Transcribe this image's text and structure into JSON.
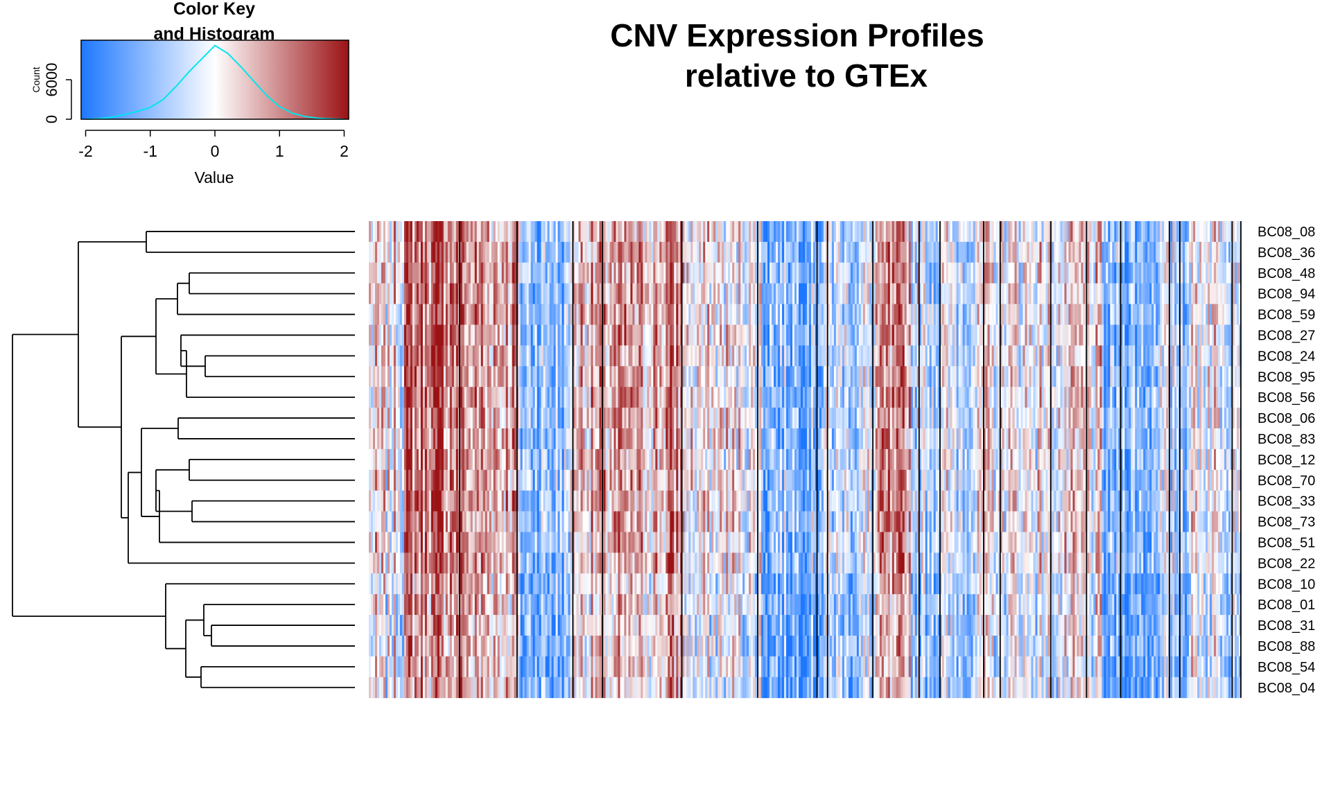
{
  "chart_data": {
    "type": "heatmap",
    "title_lines": [
      "CNV Expression Profiles",
      "relative to GTEx"
    ],
    "color_key": {
      "title_lines": [
        "Color Key",
        "and Histogram"
      ],
      "xlabel": "Value",
      "ylabel": "Count",
      "x_ticks": [
        "-2",
        "-1",
        "0",
        "1",
        "2"
      ],
      "x_tick_values": [
        -2,
        -1,
        0,
        1,
        2
      ],
      "y_ticks": [
        "0",
        "6000"
      ],
      "y_tick_values": [
        0,
        6000
      ],
      "xlim": [
        -2.07,
        2.07
      ],
      "ylim": [
        0,
        12000
      ],
      "colors": {
        "low": "#1e78ff",
        "mid": "#ffffff",
        "high": "#9b1215"
      },
      "histogram_color": "#00e5ee",
      "histogram": {
        "bin_centers": [
          -2.0,
          -1.8,
          -1.6,
          -1.4,
          -1.2,
          -1.0,
          -0.8,
          -0.6,
          -0.4,
          -0.2,
          0.0,
          0.2,
          0.4,
          0.6,
          0.8,
          1.0,
          1.2,
          1.4,
          1.6,
          1.8,
          2.0
        ],
        "counts": [
          0,
          80,
          300,
          700,
          1200,
          1800,
          3000,
          5000,
          7200,
          9200,
          11200,
          10000,
          8000,
          5800,
          3600,
          1900,
          900,
          400,
          150,
          50,
          0
        ]
      }
    },
    "rows": [
      "BC08_08",
      "BC08_36",
      "BC08_48",
      "BC08_94",
      "BC08_59",
      "BC08_27",
      "BC08_24",
      "BC08_95",
      "BC08_56",
      "BC08_06",
      "BC08_83",
      "BC08_12",
      "BC08_70",
      "BC08_33",
      "BC08_73",
      "BC08_51",
      "BC08_22",
      "BC08_10",
      "BC08_01",
      "BC08_31",
      "BC08_88",
      "BC08_54",
      "BC08_04"
    ],
    "column_separators": [
      0.104,
      0.17,
      0.234,
      0.268,
      0.359,
      0.446,
      0.514,
      0.526,
      0.578,
      0.631,
      0.655,
      0.705,
      0.724,
      0.782,
      0.823,
      0.862,
      0.918,
      0.93,
      0.99,
      1.0
    ]
  }
}
